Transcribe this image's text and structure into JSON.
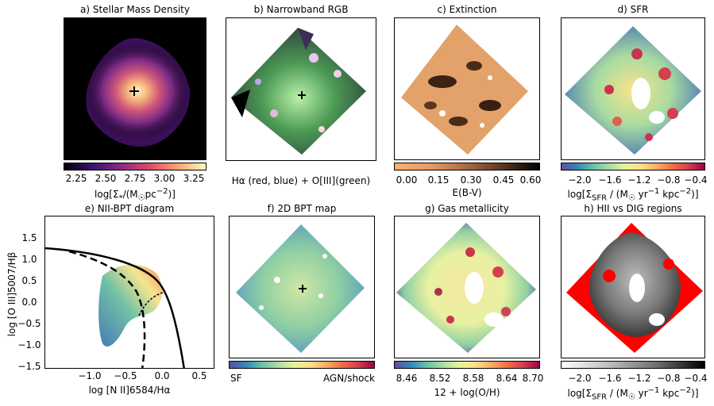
{
  "panels": {
    "a": {
      "title": "a) Stellar Mass Density",
      "ticks": [
        "2.25",
        "2.50",
        "2.75",
        "3.00",
        "3.25"
      ],
      "label_html": "log[Σ<sub>*</sub>/(M<sub>☉</sub>pc<sup>−2</sup>)]"
    },
    "b": {
      "title": "b) Narrowband RGB",
      "caption": "Hα (red, blue) + O[III](green)"
    },
    "c": {
      "title": "c) Extinction",
      "ticks": [
        "0.00",
        "0.15",
        "0.30",
        "0.45",
        "0.60"
      ],
      "label": "E(B-V)"
    },
    "d": {
      "title": "d) SFR",
      "ticks": [
        "−2.0",
        "−1.6",
        "−1.2",
        "−0.8",
        "−0.4"
      ],
      "label_html": "log[Σ<sub>SFR</sub> / (M<sub>☉</sub> yr<sup>−1</sup> kpc<sup>−2</sup>)]"
    },
    "e": {
      "title": "e) NII-BPT diagram",
      "xticks": [
        "−1.0",
        "−0.5",
        "0.0",
        "0.5"
      ],
      "yticks": [
        "1.5",
        "1.0",
        "0.5",
        "0.0",
        "−0.5",
        "−1.0",
        "−1.5"
      ],
      "xlabel": "log [N II]6584/Hα",
      "ylabel": "log [O III]5007/Hβ"
    },
    "f": {
      "title": "f) 2D BPT map",
      "left": "SF",
      "right": "AGN/shock"
    },
    "g": {
      "title": "g) Gas metallicity",
      "ticks": [
        "8.46",
        "8.52",
        "8.58",
        "8.64",
        "8.70"
      ],
      "label": "12 + log(O/H)"
    },
    "h": {
      "title": "h) HII vs DIG regions",
      "ticks": [
        "−2.0",
        "−1.6",
        "−1.2",
        "−0.8",
        "−0.4"
      ],
      "label_html": "log[Σ<sub>SFR</sub> / (M<sub>☉</sub> yr<sup>−1</sup> kpc<sup>−2</sup>)]"
    }
  },
  "colors": {
    "mass_bg": "#000000",
    "red": "#ff0000"
  }
}
